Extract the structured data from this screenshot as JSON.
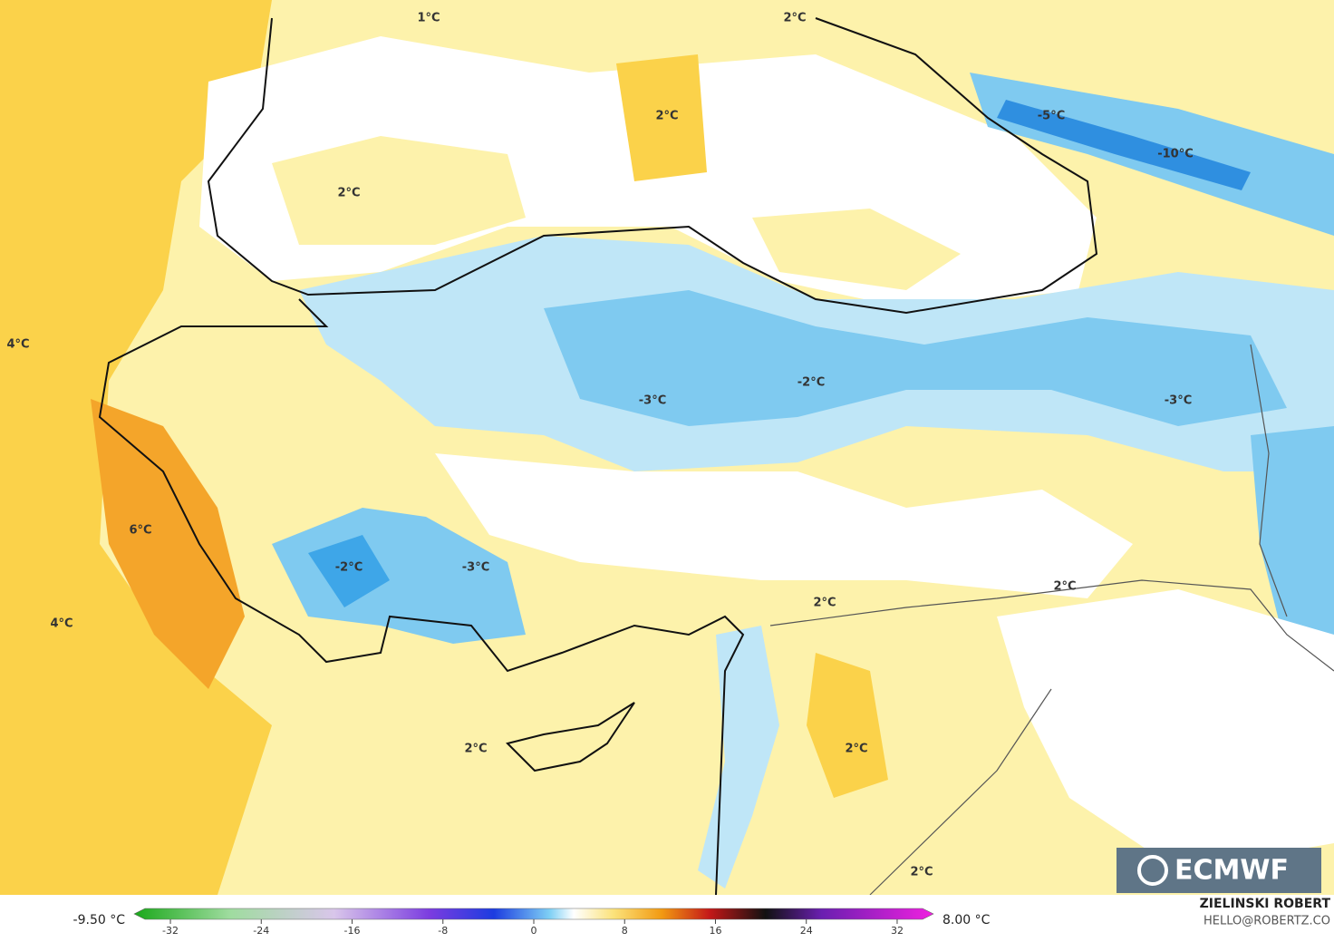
{
  "map": {
    "labels": [
      "1°C",
      "2°C",
      "2°C",
      "2°C",
      "-5°C",
      "-10°C",
      "4°C",
      "-2°C",
      "-3°C",
      "-3°C",
      "6°C",
      "-2°C",
      "-3°C",
      "2°C",
      "2°C",
      "4°C",
      "2°C",
      "2°C",
      "2°C"
    ]
  },
  "logo": "ECMWF",
  "colorbar": {
    "min_label": "-9.50 °C",
    "max_label": "8.00 °C",
    "ticks": [
      -32,
      -24,
      -16,
      -8,
      0,
      8,
      16,
      24,
      32
    ]
  },
  "credits": {
    "author": "ZIELINSKI ROBERT",
    "contact": "HELLO@ROBERTZ.CO"
  }
}
